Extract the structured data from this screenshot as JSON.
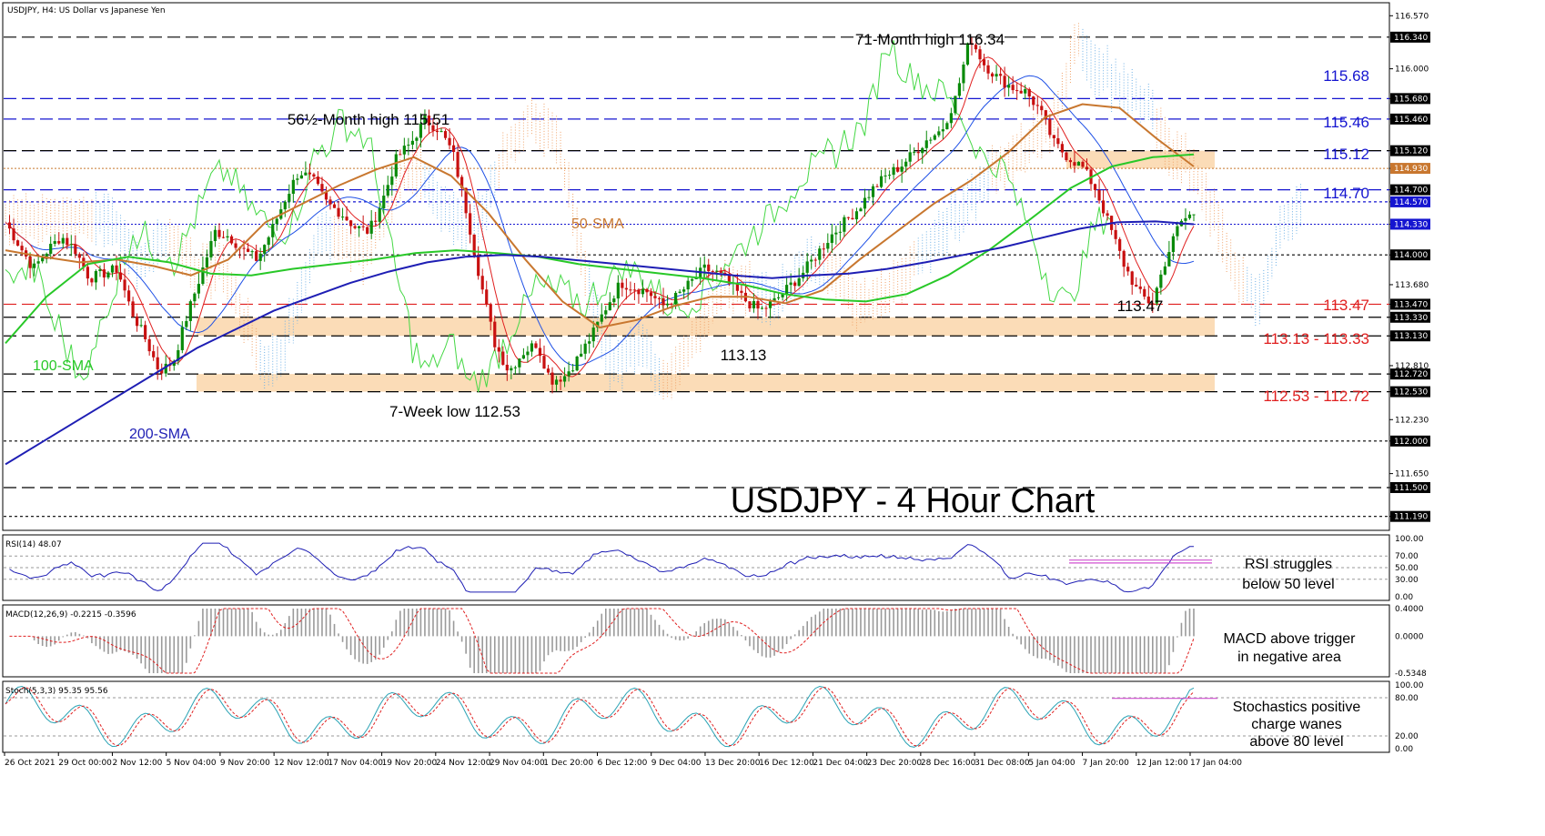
{
  "header": {
    "symbol_text": "USDJPY, H4:  US Dollar vs Japanese Yen"
  },
  "chart_data": {
    "type": "line",
    "title": "USDJPY - 4 Hour Chart",
    "symbol": "USDJPY",
    "timeframe": "H4",
    "ylim": [
      111.05,
      116.7
    ],
    "y_ticks": [
      "116.570",
      "116.000",
      "115.680",
      "115.460",
      "115.120",
      "114.930",
      "114.700",
      "114.570",
      "114.330",
      "114.000",
      "113.680",
      "113.470",
      "113.330",
      "113.130",
      "112.810",
      "112.720",
      "112.530",
      "112.230",
      "112.000",
      "111.650",
      "111.500",
      "111.190"
    ],
    "highlighted_ticks": [
      {
        "label": "116.340",
        "value": 116.34,
        "color": "#000000"
      },
      {
        "label": "115.680",
        "value": 115.68,
        "color": "#000000"
      },
      {
        "label": "115.460",
        "value": 115.46,
        "color": "#000000"
      },
      {
        "label": "115.120",
        "value": 115.12,
        "color": "#000000"
      },
      {
        "label": "114.930",
        "value": 114.93,
        "color": "#c8772f"
      },
      {
        "label": "114.700",
        "value": 114.7,
        "color": "#000000"
      },
      {
        "label": "114.570",
        "value": 114.57,
        "color": "#1515d0"
      },
      {
        "label": "114.330",
        "value": 114.33,
        "color": "#1515d0"
      },
      {
        "label": "114.000",
        "value": 114.0,
        "color": "#000000"
      },
      {
        "label": "113.470",
        "value": 113.47,
        "color": "#000000"
      },
      {
        "label": "113.330",
        "value": 113.33,
        "color": "#000000"
      },
      {
        "label": "113.130",
        "value": 113.13,
        "color": "#000000"
      },
      {
        "label": "112.720",
        "value": 112.72,
        "color": "#000000"
      },
      {
        "label": "112.530",
        "value": 112.53,
        "color": "#000000"
      },
      {
        "label": "112.000",
        "value": 112.0,
        "color": "#000000"
      },
      {
        "label": "111.500",
        "value": 111.5,
        "color": "#000000"
      },
      {
        "label": "111.190",
        "value": 111.19,
        "color": "#000000"
      }
    ],
    "x_labels": [
      "26 Oct 2021",
      "29 Oct 00:00",
      "2 Nov 12:00",
      "5 Nov 04:00",
      "9 Nov 20:00",
      "12 Nov 12:00",
      "17 Nov 04:00",
      "19 Nov 20:00",
      "24 Nov 12:00",
      "29 Nov 04:00",
      "1 Dec 20:00",
      "6 Dec 12:00",
      "9 Dec 04:00",
      "13 Dec 20:00",
      "16 Dec 12:00",
      "21 Dec 04:00",
      "23 Dec 20:00",
      "28 Dec 16:00",
      "31 Dec 08:00",
      "5 Jan 04:00",
      "7 Jan 20:00",
      "12 Jan 12:00",
      "17 Jan 04:00"
    ],
    "horizontal_levels": [
      {
        "value": 116.34,
        "label": "",
        "color": "#000000"
      },
      {
        "value": 115.68,
        "label": "115.68",
        "color": "#1515d0"
      },
      {
        "value": 115.46,
        "label": "115.46",
        "color": "#1515d0"
      },
      {
        "value": 115.12,
        "label": "115.12",
        "color": "#1515d0"
      },
      {
        "value": 114.7,
        "label": "114.70",
        "color": "#1515d0"
      },
      {
        "value": 114.57,
        "label": "",
        "color": "#1515d0"
      },
      {
        "value": 114.0,
        "label": "",
        "color": "#000000"
      },
      {
        "value": 113.47,
        "label": "113.47",
        "color": "#e02020"
      },
      {
        "value": 112.0,
        "label": "",
        "color": "#000000"
      },
      {
        "value": 111.5,
        "label": "",
        "color": "#000000"
      },
      {
        "value": 111.19,
        "label": "",
        "color": "#000000"
      }
    ],
    "zones": [
      {
        "low": 114.93,
        "high": 115.12,
        "label": ""
      },
      {
        "low": 113.13,
        "high": 113.33,
        "label": "113.13 - 113.33"
      },
      {
        "low": 112.53,
        "high": 112.72,
        "label": "112.53 - 112.72"
      }
    ],
    "annotations": [
      {
        "text": "71-Month high 116.34",
        "value": 116.34
      },
      {
        "text": "56½-Month high 115.51",
        "value": 115.51
      },
      {
        "text": "7-Week low 112.53",
        "value": 112.53
      },
      {
        "text": "113.13",
        "value": 113.13
      },
      {
        "text": "113.47",
        "value": 113.47
      }
    ],
    "series": [
      {
        "name": "50-SMA",
        "color": "#c8772f",
        "values": [
          114.05,
          113.98,
          113.92,
          113.95,
          113.88,
          113.78,
          113.95,
          114.35,
          114.55,
          114.75,
          114.92,
          115.05,
          114.85,
          114.45,
          113.95,
          113.5,
          113.22,
          113.3,
          113.45,
          113.55,
          113.55,
          113.48,
          113.62,
          113.95,
          114.25,
          114.55,
          114.8,
          115.1,
          115.48,
          115.62,
          115.58,
          115.25,
          114.95
        ]
      },
      {
        "name": "100-SMA",
        "color": "#28c828",
        "values": [
          113.05,
          113.55,
          113.9,
          113.98,
          113.92,
          113.8,
          113.78,
          113.85,
          113.9,
          113.95,
          114.02,
          114.05,
          114.02,
          113.98,
          113.9,
          113.85,
          113.8,
          113.75,
          113.68,
          113.58,
          113.52,
          113.5,
          113.58,
          113.78,
          114.05,
          114.38,
          114.72,
          114.95,
          115.05,
          115.08
        ]
      },
      {
        "name": "200-SMA",
        "color": "#1e1eb4",
        "values": [
          111.75,
          112.0,
          112.25,
          112.5,
          112.75,
          113.0,
          113.2,
          113.4,
          113.55,
          113.7,
          113.82,
          113.92,
          113.98,
          114.0,
          113.98,
          113.94,
          113.9,
          113.86,
          113.82,
          113.78,
          113.75,
          113.78,
          113.8,
          113.85,
          113.92,
          114.0,
          114.08,
          114.18,
          114.28,
          114.35,
          114.36,
          114.33
        ]
      }
    ],
    "price_path": [
      114.35,
      114.1,
      113.85,
      114.05,
      114.2,
      114.05,
      113.75,
      113.8,
      113.85,
      113.4,
      113.1,
      112.75,
      112.85,
      113.35,
      113.8,
      114.25,
      114.2,
      114.05,
      113.95,
      114.25,
      114.6,
      114.9,
      114.8,
      114.55,
      114.45,
      114.3,
      114.25,
      114.6,
      115.05,
      115.2,
      115.45,
      115.35,
      115.1,
      114.45,
      113.7,
      113.05,
      112.75,
      112.95,
      113.05,
      112.65,
      112.7,
      112.9,
      113.15,
      113.45,
      113.7,
      113.65,
      113.6,
      113.45,
      113.55,
      113.7,
      113.85,
      113.8,
      113.65,
      113.5,
      113.4,
      113.5,
      113.65,
      113.8,
      114.0,
      114.2,
      114.35,
      114.5,
      114.7,
      114.85,
      114.95,
      115.1,
      115.25,
      115.35,
      115.7,
      116.34,
      116.05,
      115.9,
      115.8,
      115.75,
      115.55,
      115.2,
      115.05,
      114.95,
      114.7,
      114.3,
      113.9,
      113.6,
      113.47,
      113.95,
      114.35,
      114.45
    ],
    "ichimoku_note": "cloud",
    "indicators": [
      {
        "name": "RSI(14)",
        "header": "RSI(14) 48.07",
        "ticks": [
          "100.00",
          "70.00",
          "50.00",
          "30.00",
          "0.00"
        ],
        "annotation": [
          "RSI struggles",
          "below 50 level"
        ],
        "value": 48.07
      },
      {
        "name": "MACD(12,26,9)",
        "header": "MACD(12,26,9) -0.2215 -0.3596",
        "ticks": [
          "0.4000",
          "0.0000",
          "-0.5348"
        ],
        "annotation": [
          "MACD above trigger",
          "in negative area"
        ],
        "macd": -0.2215,
        "signal": -0.3596
      },
      {
        "name": "Stoch(5,3,3)",
        "header": "Stoch(5,3,3) 95.35 95.56",
        "ticks": [
          "100.00",
          "80.00",
          "20.00",
          "0.00"
        ],
        "annotation": [
          "Stochastics positive",
          "charge wanes",
          "above 80 level"
        ],
        "k": 95.35,
        "d": 95.56
      }
    ],
    "legend_labels": [
      {
        "text": "50-SMA",
        "color": "#c8772f"
      },
      {
        "text": "100-SMA",
        "color": "#28c828"
      },
      {
        "text": "200-SMA",
        "color": "#1e1eb4"
      }
    ]
  }
}
